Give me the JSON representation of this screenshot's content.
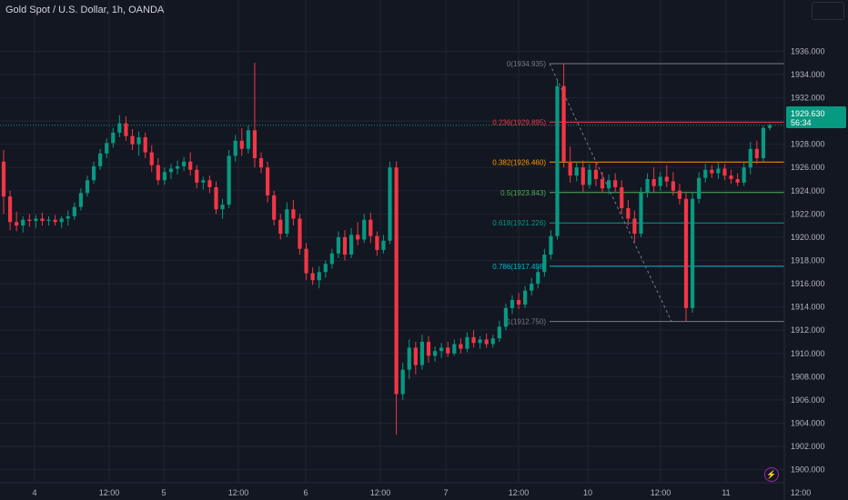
{
  "header": {
    "title": "Gold Spot / U.S. Dollar, 1h, OANDA"
  },
  "price_badge": {
    "price": "1929.630",
    "countdown": "56:34"
  },
  "chart_data": {
    "type": "candlestick",
    "title": "Gold Spot / U.S. Dollar, 1h, OANDA",
    "ylim": [
      1899.5,
      1937.2
    ],
    "y_ticks": [
      "1900.000",
      "1902.000",
      "1904.000",
      "1906.000",
      "1908.000",
      "1910.000",
      "1912.000",
      "1914.000",
      "1916.000",
      "1918.000",
      "1920.000",
      "1922.000",
      "1924.000",
      "1926.000",
      "1928.000",
      "1930.000",
      "1932.000",
      "1934.000",
      "1936.000"
    ],
    "x_ticks": [
      "4",
      "12:00",
      "5",
      "12:00",
      "6",
      "12:00",
      "7",
      "12:00",
      "10",
      "12:00",
      "11",
      "12:00"
    ],
    "fib_levels": [
      {
        "label": "0(1934.935)",
        "value": 1934.935,
        "color": "#787b86"
      },
      {
        "label": "0.236(1929.895)",
        "value": 1929.895,
        "color": "#f23645"
      },
      {
        "label": "0.382(1926.460)",
        "value": 1926.46,
        "color": "#ff9800"
      },
      {
        "label": "0.5(1923.843)",
        "value": 1923.843,
        "color": "#4caf50"
      },
      {
        "label": "0.618(1921.226)",
        "value": 1921.226,
        "color": "#089981"
      },
      {
        "label": "0.786(1917.498)",
        "value": 1917.498,
        "color": "#00bcd4"
      },
      {
        "label": "1(1912.750)",
        "value": 1912.75,
        "color": "#787b86"
      }
    ],
    "colors": {
      "up": "#089981",
      "down": "#f23645",
      "background": "#131722",
      "grid": "#1f2430"
    },
    "candles": [
      [
        1926.5,
        1927.5,
        1922.0,
        1923.5
      ],
      [
        1923.5,
        1924.0,
        1920.6,
        1921.3
      ],
      [
        1921.3,
        1922.2,
        1920.5,
        1921.0
      ],
      [
        1921.0,
        1921.8,
        1920.4,
        1921.5
      ],
      [
        1921.5,
        1922.0,
        1920.9,
        1921.4
      ],
      [
        1921.4,
        1921.9,
        1920.8,
        1921.6
      ],
      [
        1921.6,
        1922.1,
        1921.0,
        1921.4
      ],
      [
        1921.4,
        1921.8,
        1921.0,
        1921.5
      ],
      [
        1921.5,
        1921.9,
        1921.0,
        1921.3
      ],
      [
        1921.3,
        1921.8,
        1920.8,
        1921.6
      ],
      [
        1921.6,
        1922.3,
        1921.0,
        1921.8
      ],
      [
        1921.8,
        1923.0,
        1921.5,
        1922.6
      ],
      [
        1922.6,
        1924.2,
        1922.3,
        1923.8
      ],
      [
        1923.8,
        1925.3,
        1923.5,
        1924.9
      ],
      [
        1924.9,
        1926.5,
        1924.6,
        1926.1
      ],
      [
        1926.1,
        1927.6,
        1925.8,
        1927.2
      ],
      [
        1927.2,
        1928.5,
        1926.8,
        1928.1
      ],
      [
        1928.1,
        1929.4,
        1927.7,
        1929.0
      ],
      [
        1929.0,
        1930.5,
        1928.6,
        1929.8
      ],
      [
        1929.8,
        1930.4,
        1928.3,
        1928.7
      ],
      [
        1928.7,
        1929.3,
        1927.5,
        1928.0
      ],
      [
        1928.0,
        1929.1,
        1927.0,
        1928.6
      ],
      [
        1928.6,
        1929.0,
        1926.8,
        1927.3
      ],
      [
        1927.3,
        1927.9,
        1925.6,
        1926.2
      ],
      [
        1926.2,
        1926.8,
        1924.5,
        1924.9
      ],
      [
        1924.9,
        1926.0,
        1924.5,
        1925.6
      ],
      [
        1925.6,
        1926.3,
        1925.0,
        1925.9
      ],
      [
        1925.9,
        1926.6,
        1925.4,
        1926.1
      ],
      [
        1926.1,
        1926.9,
        1925.7,
        1926.5
      ],
      [
        1926.5,
        1927.3,
        1925.3,
        1925.8
      ],
      [
        1925.8,
        1926.2,
        1924.2,
        1924.7
      ],
      [
        1924.7,
        1925.2,
        1924.1,
        1924.9
      ],
      [
        1924.9,
        1925.3,
        1923.8,
        1924.3
      ],
      [
        1924.3,
        1924.8,
        1922.0,
        1922.4
      ],
      [
        1922.4,
        1923.3,
        1921.6,
        1922.8
      ],
      [
        1922.8,
        1927.5,
        1922.5,
        1927.0
      ],
      [
        1927.0,
        1928.8,
        1926.5,
        1928.3
      ],
      [
        1928.3,
        1929.4,
        1927.0,
        1927.6
      ],
      [
        1927.6,
        1929.6,
        1927.2,
        1929.2
      ],
      [
        1929.2,
        1935.0,
        1926.0,
        1926.8
      ],
      [
        1926.8,
        1927.3,
        1925.5,
        1926.0
      ],
      [
        1926.0,
        1926.5,
        1923.0,
        1923.6
      ],
      [
        1923.6,
        1924.0,
        1921.0,
        1921.5
      ],
      [
        1921.5,
        1922.0,
        1919.8,
        1920.3
      ],
      [
        1920.3,
        1923.0,
        1920.0,
        1922.4
      ],
      [
        1922.4,
        1923.2,
        1921.0,
        1921.6
      ],
      [
        1921.6,
        1922.0,
        1918.5,
        1919.0
      ],
      [
        1919.0,
        1919.5,
        1916.3,
        1916.9
      ],
      [
        1916.9,
        1917.4,
        1915.9,
        1916.3
      ],
      [
        1916.3,
        1917.5,
        1915.6,
        1917.0
      ],
      [
        1917.0,
        1918.0,
        1916.5,
        1917.7
      ],
      [
        1917.7,
        1919.0,
        1917.3,
        1918.6
      ],
      [
        1918.6,
        1920.5,
        1918.2,
        1920.0
      ],
      [
        1920.0,
        1920.6,
        1918.0,
        1918.5
      ],
      [
        1918.5,
        1920.8,
        1918.2,
        1920.2
      ],
      [
        1920.2,
        1921.3,
        1919.3,
        1919.8
      ],
      [
        1919.8,
        1922.0,
        1919.5,
        1921.5
      ],
      [
        1921.5,
        1922.1,
        1919.5,
        1920.1
      ],
      [
        1920.1,
        1920.5,
        1918.4,
        1918.9
      ],
      [
        1918.9,
        1920.2,
        1918.6,
        1919.7
      ],
      [
        1919.7,
        1926.5,
        1919.4,
        1926.0
      ],
      [
        1926.0,
        1926.5,
        1903.0,
        1906.5
      ],
      [
        1906.5,
        1909.2,
        1906.0,
        1908.6
      ],
      [
        1908.6,
        1911.2,
        1907.8,
        1910.5
      ],
      [
        1910.5,
        1911.0,
        1908.2,
        1909.0
      ],
      [
        1909.0,
        1911.6,
        1908.6,
        1911.0
      ],
      [
        1911.0,
        1911.5,
        1909.2,
        1909.8
      ],
      [
        1909.8,
        1910.6,
        1909.3,
        1910.2
      ],
      [
        1910.2,
        1910.9,
        1909.6,
        1910.5
      ],
      [
        1910.5,
        1911.0,
        1909.7,
        1910.0
      ],
      [
        1910.0,
        1911.2,
        1909.8,
        1910.8
      ],
      [
        1910.8,
        1911.3,
        1910.0,
        1910.4
      ],
      [
        1910.4,
        1911.8,
        1910.1,
        1911.4
      ],
      [
        1911.4,
        1912.0,
        1910.5,
        1910.9
      ],
      [
        1910.9,
        1911.5,
        1910.4,
        1911.2
      ],
      [
        1911.2,
        1911.7,
        1910.5,
        1910.8
      ],
      [
        1910.8,
        1911.6,
        1910.5,
        1911.3
      ],
      [
        1911.3,
        1912.8,
        1911.0,
        1912.3
      ],
      [
        1912.3,
        1914.3,
        1912.0,
        1913.9
      ],
      [
        1913.9,
        1915.0,
        1913.4,
        1914.6
      ],
      [
        1914.6,
        1915.2,
        1913.8,
        1914.2
      ],
      [
        1914.2,
        1915.8,
        1913.9,
        1915.4
      ],
      [
        1915.4,
        1916.5,
        1915.0,
        1916.0
      ],
      [
        1916.0,
        1917.5,
        1915.6,
        1917.0
      ],
      [
        1917.0,
        1919.0,
        1916.6,
        1918.5
      ],
      [
        1918.5,
        1920.6,
        1918.1,
        1920.1
      ],
      [
        1920.1,
        1933.5,
        1919.8,
        1933.0
      ],
      [
        1933.0,
        1934.9,
        1926.0,
        1926.5
      ],
      [
        1926.5,
        1927.8,
        1924.7,
        1925.3
      ],
      [
        1925.3,
        1926.5,
        1924.8,
        1926.0
      ],
      [
        1926.0,
        1926.6,
        1923.9,
        1924.5
      ],
      [
        1924.5,
        1926.3,
        1924.2,
        1925.8
      ],
      [
        1925.8,
        1926.5,
        1924.4,
        1925.0
      ],
      [
        1925.0,
        1925.6,
        1923.8,
        1924.2
      ],
      [
        1924.2,
        1925.4,
        1923.7,
        1924.9
      ],
      [
        1924.9,
        1925.5,
        1923.9,
        1924.3
      ],
      [
        1924.3,
        1924.9,
        1922.0,
        1922.5
      ],
      [
        1922.5,
        1923.2,
        1921.0,
        1921.6
      ],
      [
        1921.6,
        1922.3,
        1919.6,
        1920.3
      ],
      [
        1920.3,
        1924.3,
        1920.0,
        1923.8
      ],
      [
        1923.8,
        1925.5,
        1923.4,
        1925.0
      ],
      [
        1925.0,
        1926.0,
        1923.9,
        1924.4
      ],
      [
        1924.4,
        1925.6,
        1924.0,
        1925.2
      ],
      [
        1925.2,
        1926.2,
        1924.3,
        1924.8
      ],
      [
        1924.8,
        1925.6,
        1923.6,
        1924.0
      ],
      [
        1924.0,
        1924.6,
        1922.8,
        1923.3
      ],
      [
        1923.3,
        1923.8,
        1912.8,
        1913.9
      ],
      [
        1913.9,
        1923.9,
        1913.5,
        1923.3
      ],
      [
        1923.3,
        1925.6,
        1922.9,
        1925.1
      ],
      [
        1925.1,
        1926.3,
        1924.7,
        1925.8
      ],
      [
        1925.8,
        1926.2,
        1925.1,
        1925.5
      ],
      [
        1925.5,
        1926.4,
        1925.0,
        1925.9
      ],
      [
        1925.9,
        1926.3,
        1924.9,
        1925.3
      ],
      [
        1925.3,
        1925.8,
        1924.6,
        1925.0
      ],
      [
        1925.0,
        1925.5,
        1924.4,
        1924.7
      ],
      [
        1924.7,
        1926.4,
        1924.4,
        1926.0
      ],
      [
        1926.0,
        1928.2,
        1925.4,
        1927.6
      ],
      [
        1927.6,
        1928.3,
        1926.3,
        1926.8
      ],
      [
        1926.8,
        1929.6,
        1926.5,
        1929.4
      ],
      [
        1929.4,
        1929.8,
        1929.2,
        1929.63
      ]
    ]
  }
}
